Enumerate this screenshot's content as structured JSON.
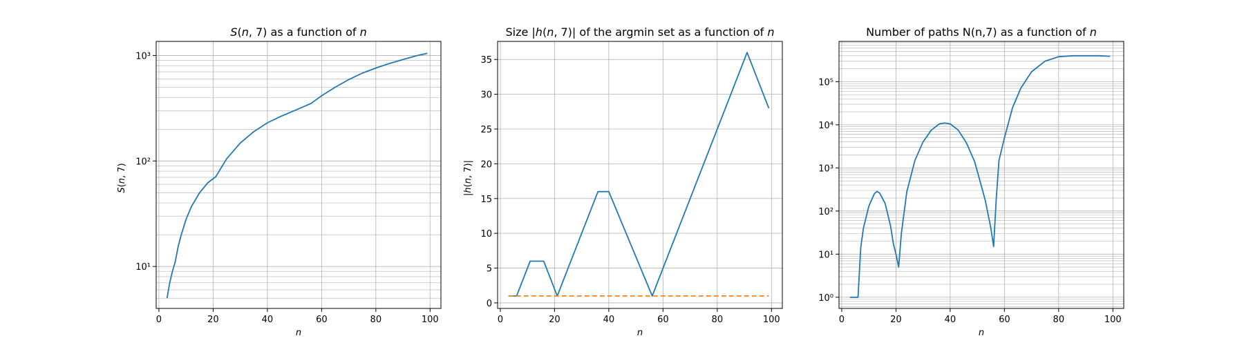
{
  "chart_data": [
    {
      "type": "line",
      "title": "S(n, 7) as a function of n",
      "xlabel": "n",
      "ylabel": "S(n, 7)",
      "yscale": "log",
      "xlim": [
        -1,
        104
      ],
      "ylim": [
        4.0,
        1360
      ],
      "grid": "major and minor",
      "xticks": [
        "0",
        "20",
        "40",
        "60",
        "80",
        "100"
      ],
      "yticks": [
        "10¹",
        "10²",
        "10³"
      ],
      "series": [
        {
          "color": "#1f77b4",
          "x": [
            3,
            4,
            5,
            6,
            7,
            8,
            10,
            12,
            15,
            18,
            21,
            25,
            30,
            35,
            40,
            45,
            50,
            56,
            60,
            65,
            70,
            75,
            80,
            85,
            90,
            95,
            99
          ],
          "y": [
            5,
            7,
            9,
            11,
            15,
            19,
            28,
            37,
            50,
            62,
            71,
            105,
            148,
            190,
            230,
            265,
            300,
            350,
            415,
            500,
            590,
            680,
            760,
            840,
            915,
            995,
            1050
          ]
        }
      ]
    },
    {
      "type": "line",
      "title": "Size |h(n, 7)| of the argmin set as a function of n",
      "xlabel": "n",
      "ylabel": "|h(n, 7)|",
      "yscale": "linear",
      "xlim": [
        -1,
        104
      ],
      "ylim": [
        -0.8,
        37.6
      ],
      "grid": "major",
      "xticks": [
        "0",
        "20",
        "40",
        "60",
        "80",
        "100"
      ],
      "yticks": [
        "0",
        "5",
        "10",
        "15",
        "20",
        "25",
        "30",
        "35"
      ],
      "series": [
        {
          "color": "#1f77b4",
          "x": [
            3,
            6,
            11,
            16,
            21,
            36,
            40,
            56,
            91,
            99
          ],
          "y": [
            1,
            1,
            6,
            6,
            1,
            16,
            16,
            1,
            36,
            28
          ]
        },
        {
          "color": "#ff7f0e",
          "dashed": true,
          "x": [
            3,
            99
          ],
          "y": [
            1,
            1
          ]
        }
      ]
    },
    {
      "type": "line",
      "title": "Number of paths N(n,7) as a function of n",
      "xlabel": "n",
      "ylabel": "",
      "yscale": "log",
      "xlim": [
        -1,
        104
      ],
      "ylim": [
        0.55,
        860000
      ],
      "grid": "major and minor",
      "xticks": [
        "0",
        "20",
        "40",
        "60",
        "80",
        "100"
      ],
      "yticks": [
        "10⁰",
        "10¹",
        "10²",
        "10³",
        "10⁴",
        "10⁵"
      ],
      "series": [
        {
          "color": "#1f77b4",
          "x": [
            3,
            6,
            7,
            8,
            10,
            12,
            13,
            14,
            16,
            18,
            19,
            20,
            21,
            22,
            24,
            27,
            30,
            33,
            36,
            38,
            40,
            43,
            46,
            49,
            51,
            53,
            55,
            56,
            57,
            58,
            60,
            63,
            66,
            70,
            75,
            80,
            85,
            90,
            95,
            99
          ],
          "y": [
            1,
            1,
            14,
            40,
            130,
            250,
            285,
            260,
            150,
            45,
            18,
            10,
            5,
            30,
            280,
            1500,
            4000,
            7500,
            10500,
            11000,
            10500,
            7500,
            3800,
            1400,
            500,
            170,
            40,
            15,
            200,
            1500,
            5000,
            25000,
            70000,
            170000,
            300000,
            380000,
            400000,
            400000,
            400000,
            390000
          ]
        }
      ]
    }
  ]
}
